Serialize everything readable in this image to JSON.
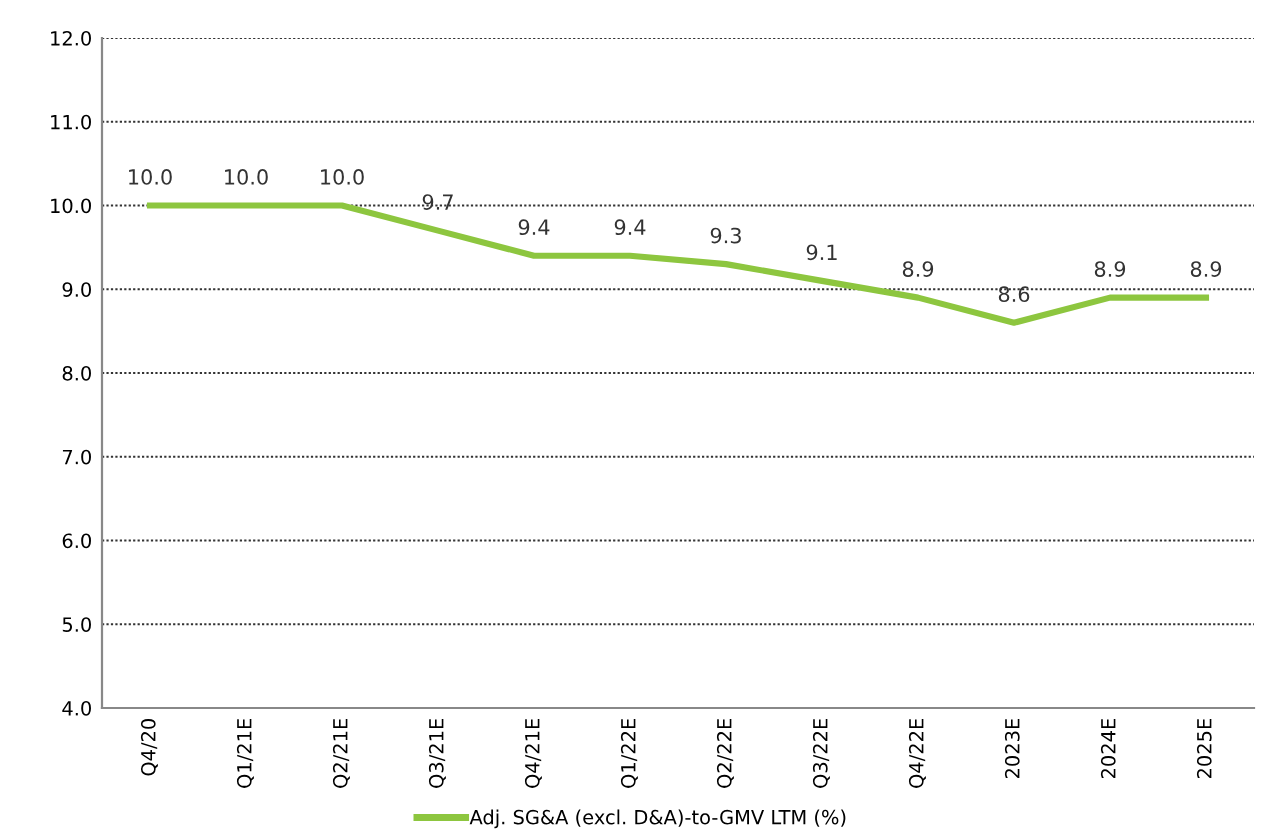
{
  "chart_data": {
    "type": "line",
    "categories": [
      "Q4/20",
      "Q1/21E",
      "Q2/21E",
      "Q3/21E",
      "Q4/21E",
      "Q1/22E",
      "Q2/22E",
      "Q3/22E",
      "Q4/22E",
      "2023E",
      "2024E",
      "2025E"
    ],
    "series": [
      {
        "name": "Adj. SG&A (excl. D&A)-to-GMV LTM (%)",
        "color": "#8dc63f",
        "values": [
          10.0,
          10.0,
          10.0,
          9.7,
          9.4,
          9.4,
          9.3,
          9.1,
          8.9,
          8.6,
          8.9,
          8.9
        ],
        "value_labels": [
          "10.0",
          "10.0",
          "10.0",
          "9.7",
          "9.4",
          "9.4",
          "9.3",
          "9.1",
          "8.9",
          "8.6",
          "8.9",
          "8.9"
        ]
      }
    ],
    "ylim": [
      4.0,
      12.0
    ],
    "yticks": [
      {
        "value": 4,
        "label": "4.0"
      },
      {
        "value": 5,
        "label": "5.0"
      },
      {
        "value": 6,
        "label": "6.0"
      },
      {
        "value": 7,
        "label": "7.0"
      },
      {
        "value": 8,
        "label": "8.0"
      },
      {
        "value": 9,
        "label": "9.0"
      },
      {
        "value": 10,
        "label": "10.0"
      },
      {
        "value": 11,
        "label": "11.0"
      },
      {
        "value": 12,
        "label": "12.0"
      }
    ],
    "grid": "y",
    "legend": "bottom",
    "marker": "none",
    "line_style": "solid"
  }
}
